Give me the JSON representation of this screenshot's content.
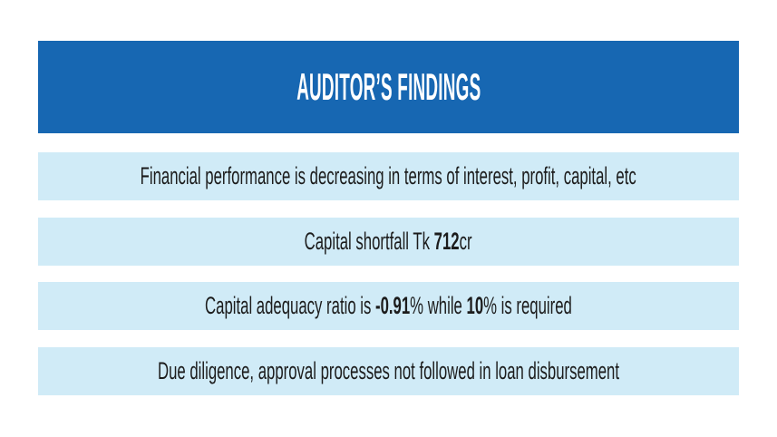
{
  "colors": {
    "page_background": "#FFFFFF",
    "header_blue": "#1767B2",
    "row_light_blue": "#D0EBF7",
    "title_text": "#FFFFFF",
    "body_text": "#1C1C1C"
  },
  "header": {
    "title": "AUDITOR’S FINDINGS"
  },
  "findings": {
    "rows": [
      {
        "segments": [
          {
            "text": "Financial performance is decreasing in terms of interest, profit, capital, etc",
            "bold": false
          }
        ]
      },
      {
        "segments": [
          {
            "text": "Capital shortfall Tk ",
            "bold": false
          },
          {
            "text": "712",
            "bold": true
          },
          {
            "text": "cr",
            "bold": false
          }
        ]
      },
      {
        "segments": [
          {
            "text": "Capital adequacy ratio is ",
            "bold": false
          },
          {
            "text": "-0.91",
            "bold": true
          },
          {
            "text": "% while ",
            "bold": false
          },
          {
            "text": "10",
            "bold": true
          },
          {
            "text": "% is required",
            "bold": false
          }
        ]
      },
      {
        "segments": [
          {
            "text": "Due diligence, approval processes not followed in loan disbursement",
            "bold": false
          }
        ]
      }
    ]
  }
}
